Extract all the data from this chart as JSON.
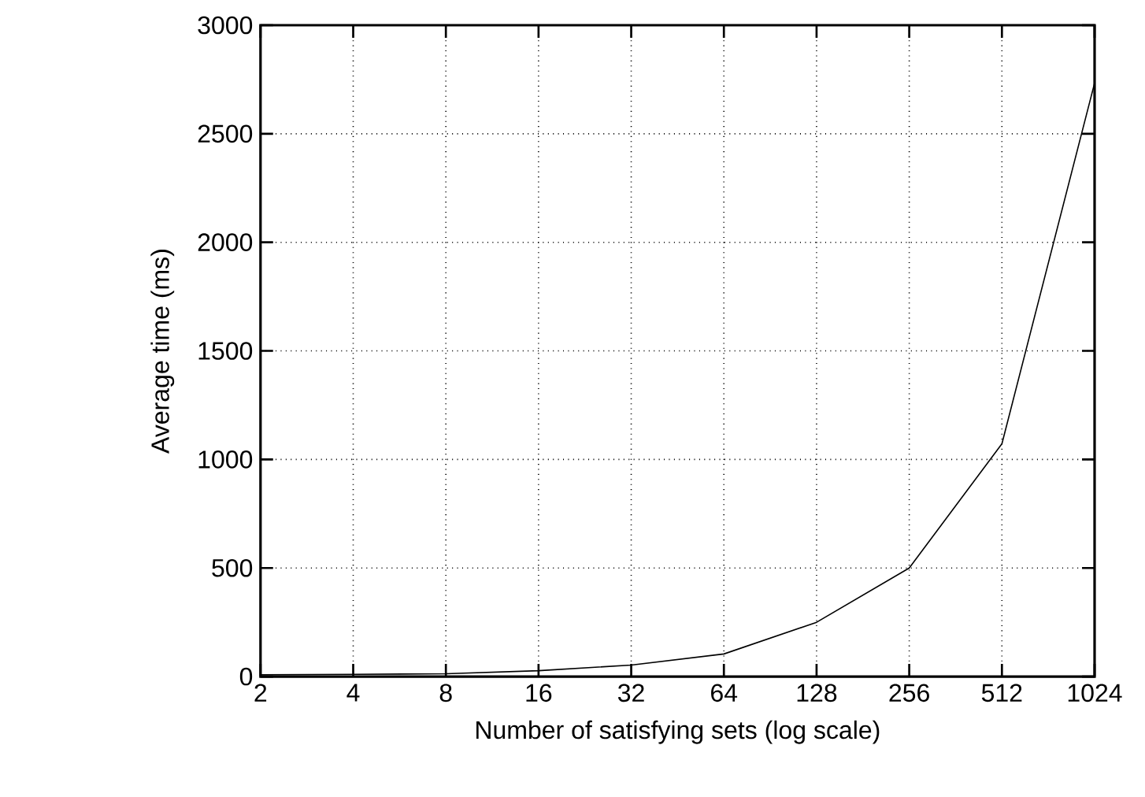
{
  "chart_data": {
    "type": "line",
    "xlabel": "Number of satisfying sets (log scale)",
    "ylabel": "Average time (ms)",
    "x": [
      2,
      4,
      8,
      16,
      32,
      64,
      128,
      256,
      512,
      1024
    ],
    "series": [
      {
        "color": "#000000",
        "values": [
          8,
          10,
          13,
          27,
          53,
          104,
          250,
          500,
          1072,
          2734
        ]
      }
    ],
    "xlim": [
      2,
      1024
    ],
    "ylim": [
      0,
      3000
    ],
    "xticks": [
      2,
      4,
      8,
      16,
      32,
      64,
      128,
      256,
      512,
      1024
    ],
    "yticks": [
      0,
      500,
      1000,
      1500,
      2000,
      2500,
      3000
    ],
    "log": "x",
    "grid": true,
    "marker": "none",
    "line_style": "solid"
  }
}
